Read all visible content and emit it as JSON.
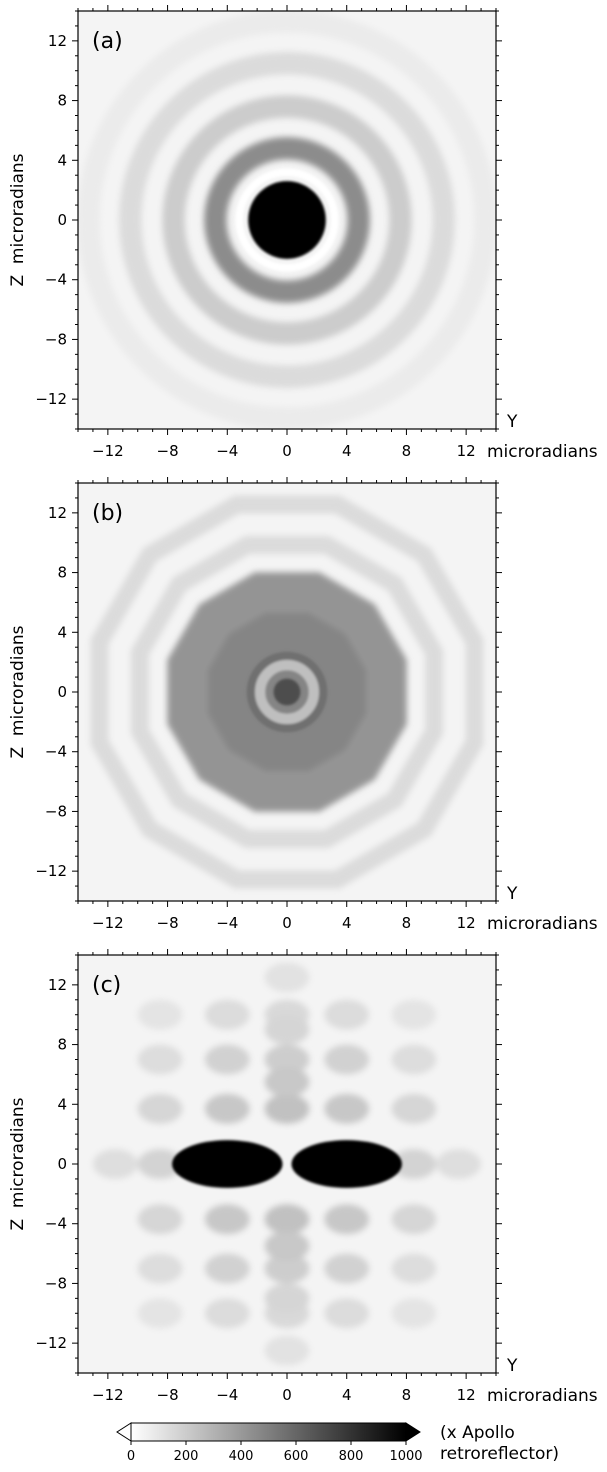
{
  "chart_data": [
    {
      "type": "heatmap",
      "panel_label": "(a)",
      "pattern": "concentric rings: dark Airy-like core with bright (white) ring, then alternating gray rings",
      "xlabel_top": "Y",
      "xlabel_bottom": "microradians",
      "ylabel": "Z  microradians",
      "xlim": [
        -14,
        14
      ],
      "ylim": [
        -14,
        14
      ],
      "xticks": [
        -12,
        -8,
        -4,
        0,
        4,
        8,
        12
      ],
      "yticks": [
        12,
        8,
        4,
        0,
        -4,
        -8,
        -12
      ],
      "features": {
        "central_core": {
          "center": [
            0,
            0
          ],
          "radius": 2.6,
          "value": 1000
        },
        "bright_ring_radius": 3.2,
        "ring_radii": [
          4.8,
          7.6,
          10.5,
          13.3
        ],
        "ring_values": [
          450,
          200,
          140,
          80
        ]
      }
    },
    {
      "type": "heatmap",
      "panel_label": "(b)",
      "pattern": "broad dodecagonal gray plateau with small central dark spot and light inner ring",
      "xlabel_top": "Y",
      "xlabel_bottom": "microradians",
      "ylabel": "Z  microradians",
      "xlim": [
        -14,
        14
      ],
      "ylim": [
        -14,
        14
      ],
      "xticks": [
        -12,
        -8,
        -4,
        0,
        4,
        8,
        12
      ],
      "yticks": [
        12,
        8,
        4,
        0,
        -4,
        -8,
        -12
      ],
      "features": {
        "central_spot": {
          "center": [
            0,
            0
          ],
          "radius": 0.9,
          "value": 700
        },
        "light_ring_radius": 1.8,
        "plateau_radius": 7.5,
        "plateau_value": 420,
        "outer_fringe_radii": [
          10.2,
          13.0
        ]
      }
    },
    {
      "type": "heatmap",
      "panel_label": "(c)",
      "pattern": "two dark elongated lobes on the Y axis with lattice of weaker side lobes",
      "xlabel_top": "Y",
      "xlabel_bottom": "microradians",
      "ylabel": "Z  microradians",
      "xlim": [
        -14,
        14
      ],
      "ylim": [
        -14,
        14
      ],
      "xticks": [
        -12,
        -8,
        -4,
        0,
        4,
        8,
        12
      ],
      "yticks": [
        12,
        8,
        4,
        0,
        -4,
        -8,
        -12
      ],
      "features": {
        "main_lobes": [
          {
            "center": [
              -4,
              0
            ],
            "half_width_y": 3.7,
            "half_height_z": 1.6,
            "value": 1000
          },
          {
            "center": [
              4,
              0
            ],
            "half_width_y": 3.7,
            "half_height_z": 1.6,
            "value": 1000
          }
        ],
        "side_lobe_value": 300
      }
    }
  ],
  "colorbar": {
    "ticks": [
      0,
      200,
      400,
      600,
      800,
      1000
    ],
    "range": [
      0,
      1000
    ],
    "note_line1": "(x Apollo",
    "note_line2": "retroreflector)",
    "colors": {
      "low": "#ffffff",
      "high": "#000000"
    }
  }
}
